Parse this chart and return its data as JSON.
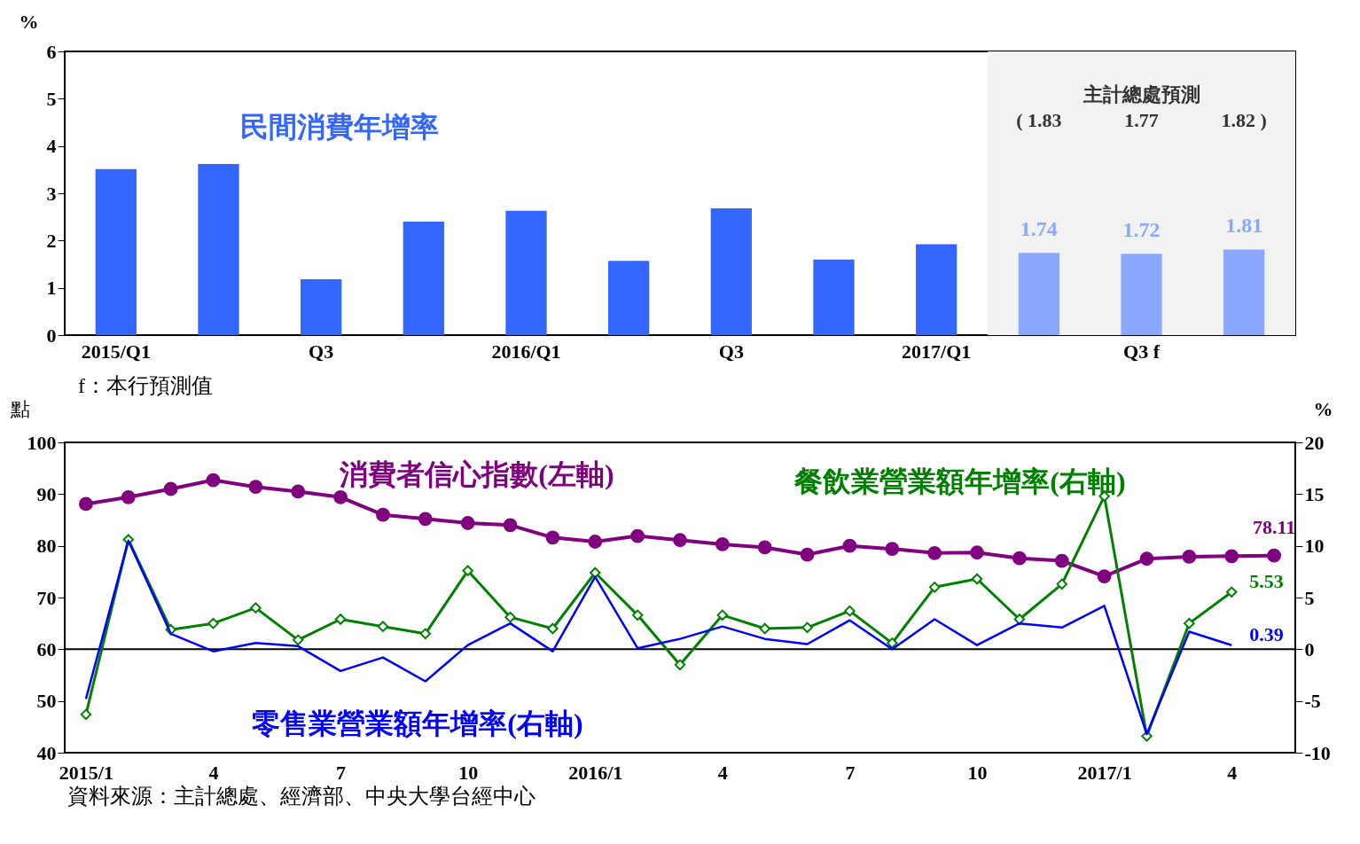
{
  "chart_data": [
    {
      "type": "bar",
      "categories": [
        "2015/Q1",
        null,
        "Q3",
        null,
        "2016/Q1",
        null,
        "Q3",
        null,
        "2017/Q1",
        null,
        "Q3 f",
        null
      ],
      "series": [
        {
          "name": "民間消費年增率",
          "color": "#3366ff",
          "colors": [
            "#3366ff",
            "#3366ff",
            "#3366ff",
            "#3366ff",
            "#3366ff",
            "#3366ff",
            "#3366ff",
            "#3366ff",
            "#3366ff",
            "#8aa8ff",
            "#8aa8ff",
            "#8aa8ff"
          ],
          "values": [
            3.51,
            3.62,
            1.18,
            2.4,
            2.63,
            1.57,
            2.68,
            1.6,
            1.92,
            1.74,
            1.72,
            1.81
          ],
          "value_labels": [
            null,
            null,
            null,
            null,
            null,
            null,
            null,
            null,
            null,
            "1.74",
            "1.72",
            "1.81"
          ]
        }
      ],
      "ylabel": "%",
      "ylim": [
        0,
        6
      ],
      "yticks": [
        0,
        1,
        2,
        3,
        4,
        5,
        6
      ],
      "annotations": [
        "主計總處預測",
        "( 1.83",
        "1.77",
        "1.82 )",
        "f：本行預測值"
      ],
      "grid": false
    },
    {
      "type": "line",
      "categories": [
        "2015/1",
        null,
        null,
        "4",
        null,
        null,
        "7",
        null,
        null,
        "10",
        null,
        null,
        "2016/1",
        null,
        null,
        "4",
        null,
        null,
        "7",
        null,
        null,
        "10",
        null,
        null,
        "2017/1",
        null,
        null,
        "4",
        null
      ],
      "series": [
        {
          "name": "消費者信心指數(左軸)",
          "color": "#800080",
          "marker": "circle",
          "values": [
            88.1,
            89.4,
            91.0,
            92.7,
            91.4,
            90.5,
            89.4,
            86.0,
            85.2,
            84.4,
            84.0,
            81.6,
            80.8,
            81.9,
            81.1,
            80.3,
            79.7,
            78.3,
            80.0,
            79.4,
            78.6,
            78.7,
            77.6,
            77.1,
            74.1,
            77.5,
            77.9,
            78.0,
            78.11
          ],
          "value_labels": [
            null,
            null,
            null,
            null,
            null,
            null,
            null,
            null,
            null,
            null,
            null,
            null,
            null,
            null,
            null,
            null,
            null,
            null,
            null,
            null,
            null,
            null,
            null,
            null,
            null,
            null,
            null,
            null,
            "78.11"
          ]
        },
        {
          "name": "餐飲業營業額年增率(右軸)",
          "color": "#008000",
          "marker": "diamond",
          "axis": "y2",
          "values": [
            -6.3,
            10.6,
            1.9,
            2.5,
            4.0,
            0.9,
            2.9,
            2.2,
            1.5,
            7.6,
            3.1,
            2.0,
            7.4,
            3.3,
            -1.5,
            3.3,
            2.0,
            2.1,
            3.7,
            0.6,
            6.0,
            6.8,
            2.9,
            6.3,
            14.8,
            -8.4,
            2.5,
            5.53,
            null
          ],
          "value_labels": [
            null,
            null,
            null,
            null,
            null,
            null,
            null,
            null,
            null,
            null,
            null,
            null,
            null,
            null,
            null,
            null,
            null,
            null,
            null,
            null,
            null,
            null,
            null,
            null,
            null,
            null,
            null,
            "5.53",
            null
          ]
        },
        {
          "name": "零售業營業額年增率(右軸)",
          "color": "#0000ff",
          "marker": "none",
          "axis": "y2",
          "values": [
            -4.8,
            10.5,
            1.5,
            -0.2,
            0.6,
            0.3,
            -2.1,
            -0.8,
            -3.1,
            0.4,
            2.5,
            -0.2,
            7.0,
            0.1,
            1.0,
            2.2,
            1.0,
            0.5,
            2.8,
            0.0,
            2.9,
            0.4,
            2.5,
            2.1,
            4.2,
            -8.2,
            1.7,
            0.39,
            null
          ],
          "value_labels": [
            null,
            null,
            null,
            null,
            null,
            null,
            null,
            null,
            null,
            null,
            null,
            null,
            null,
            null,
            null,
            null,
            null,
            null,
            null,
            null,
            null,
            null,
            null,
            null,
            null,
            null,
            null,
            "0.39",
            null
          ]
        }
      ],
      "ylabel": "點",
      "ylim": [
        40,
        100
      ],
      "yticks": [
        40,
        50,
        60,
        70,
        80,
        90,
        100
      ],
      "y2label": "%",
      "y2lim": [
        -10,
        20
      ],
      "y2ticks": [
        -10,
        -5,
        0,
        5,
        10,
        15,
        20
      ],
      "ref_lines": [
        {
          "axis": "y2",
          "value": 0,
          "color": "#000000"
        }
      ],
      "annotations": [
        "資料來源：主計總處、經濟部、中央大學台經中心"
      ],
      "grid": false
    }
  ]
}
